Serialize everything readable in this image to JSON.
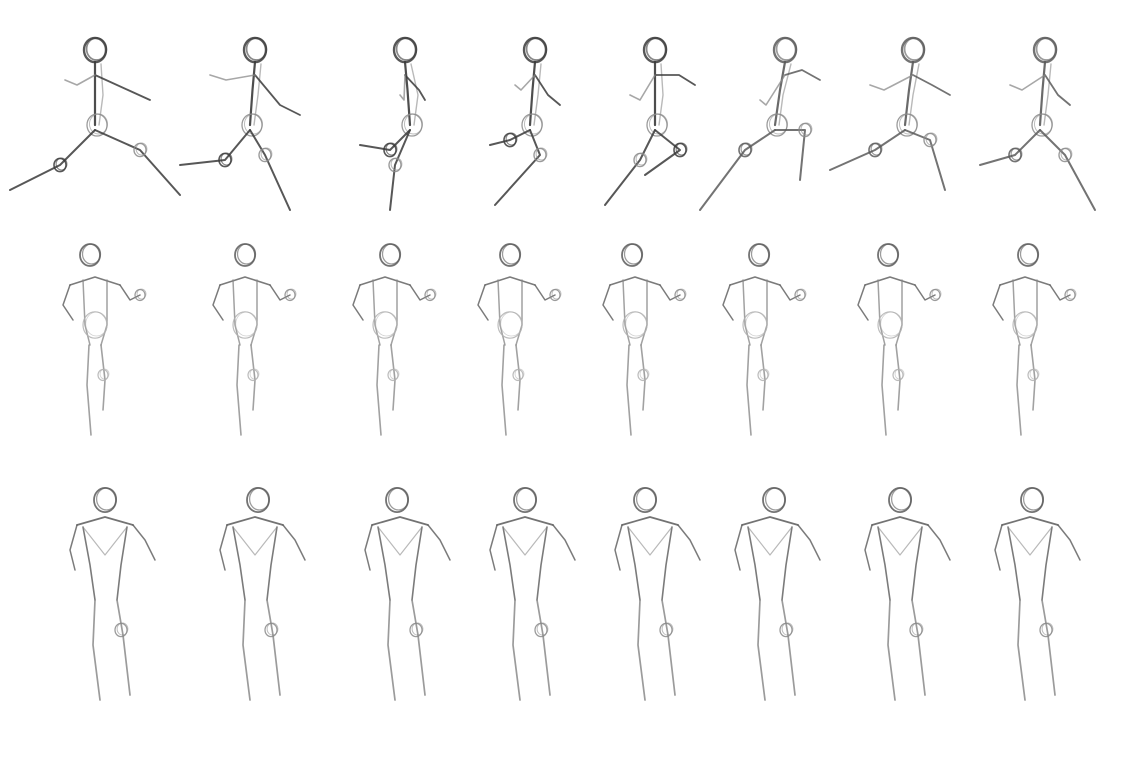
{
  "sheet": {
    "background": "#ffffff",
    "stroke_colors": [
      "#3a3a3a",
      "#5a5a5a",
      "#8a8a8a",
      "#b0b0b0"
    ],
    "rows": [
      {
        "view": "side",
        "figures": [
          {
            "name": "figure-side-1"
          },
          {
            "name": "figure-side-2"
          },
          {
            "name": "figure-side-3"
          },
          {
            "name": "figure-side-4"
          },
          {
            "name": "figure-side-5"
          },
          {
            "name": "figure-side-6"
          },
          {
            "name": "figure-side-7"
          },
          {
            "name": "figure-side-8"
          }
        ]
      },
      {
        "view": "front",
        "figures": [
          {
            "name": "figure-front-1"
          },
          {
            "name": "figure-front-2"
          },
          {
            "name": "figure-front-3"
          },
          {
            "name": "figure-front-4"
          },
          {
            "name": "figure-front-5"
          },
          {
            "name": "figure-front-6"
          },
          {
            "name": "figure-front-7"
          },
          {
            "name": "figure-front-8"
          }
        ]
      },
      {
        "view": "back",
        "figures": [
          {
            "name": "figure-back-1"
          },
          {
            "name": "figure-back-2"
          },
          {
            "name": "figure-back-3"
          },
          {
            "name": "figure-back-4"
          },
          {
            "name": "figure-back-5"
          },
          {
            "name": "figure-back-6"
          },
          {
            "name": "figure-back-7"
          },
          {
            "name": "figure-back-8"
          }
        ]
      }
    ]
  }
}
